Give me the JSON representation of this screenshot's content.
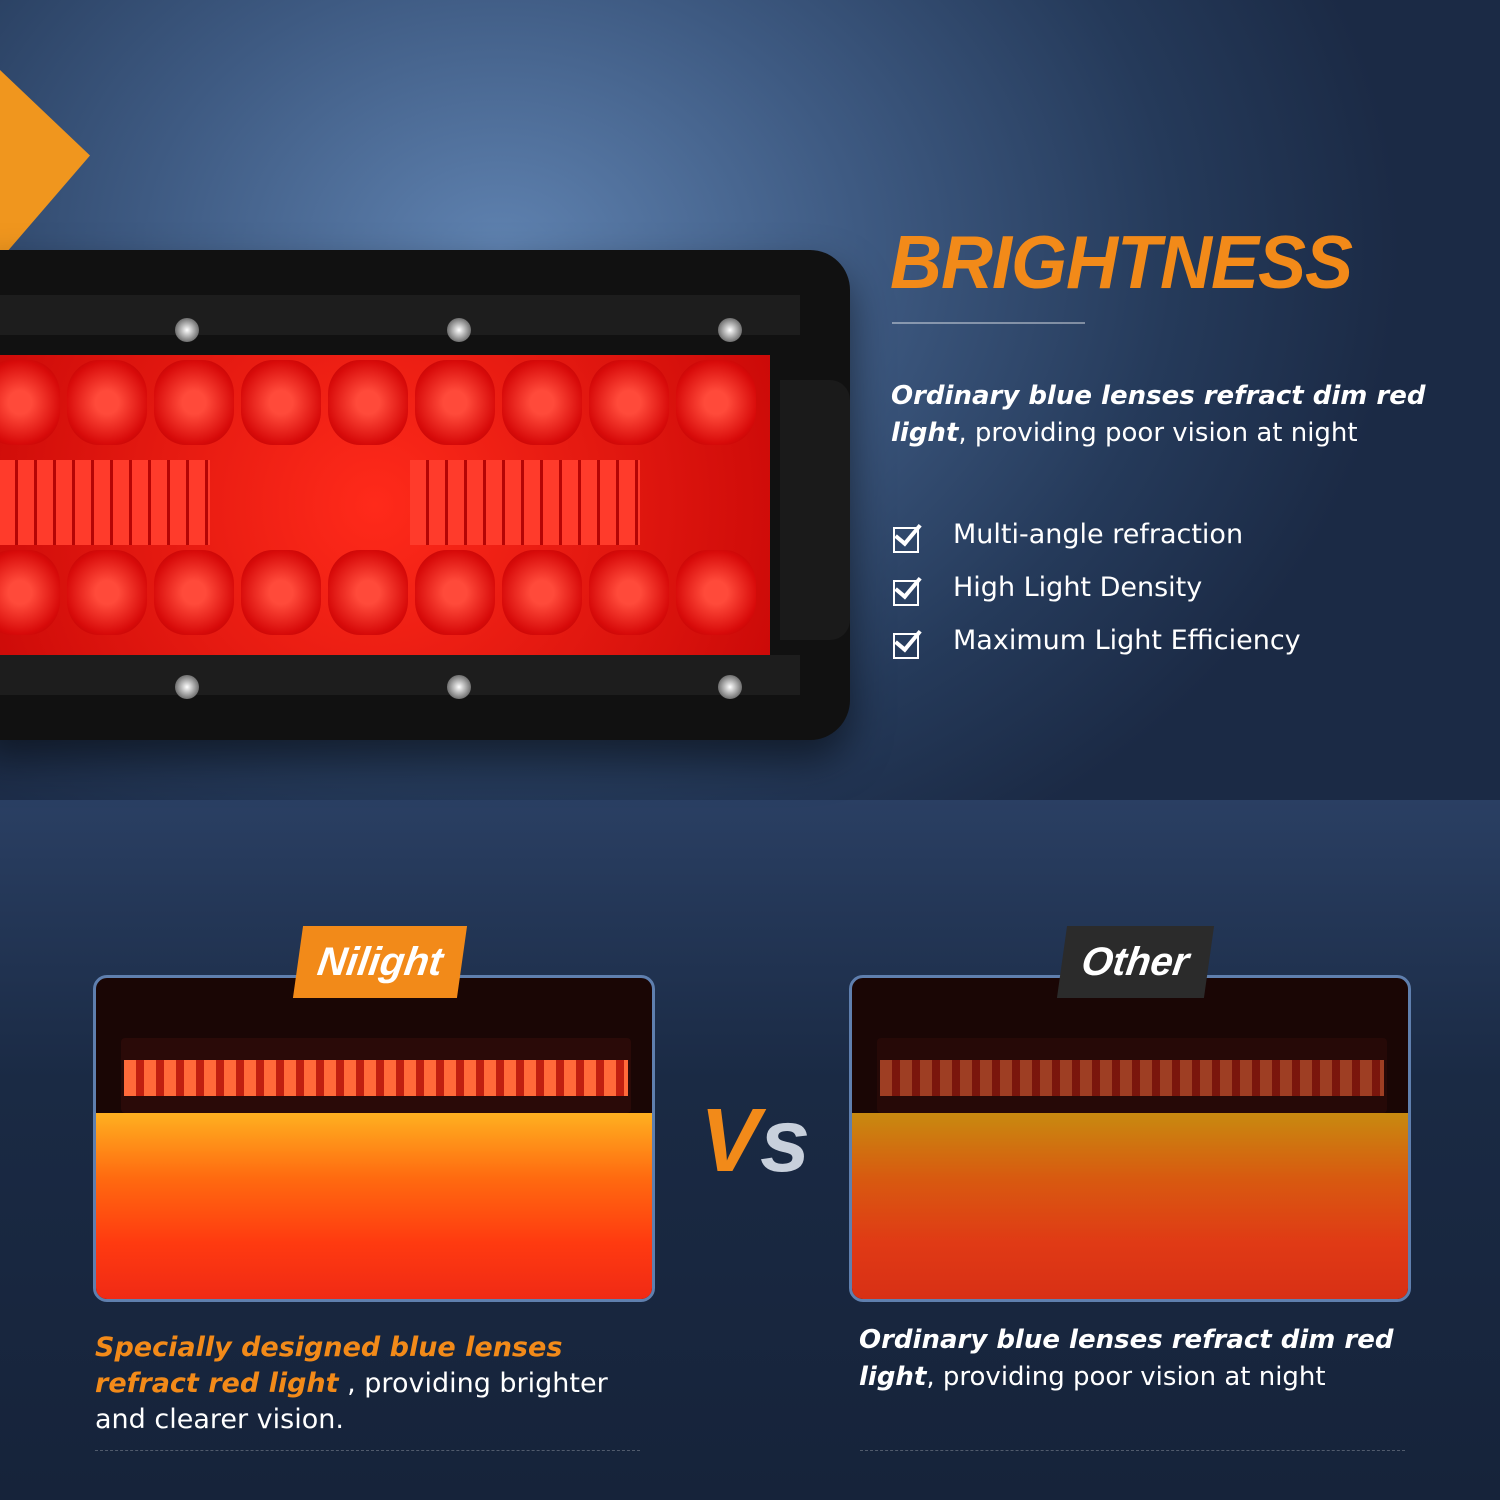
{
  "heading": {
    "title": "BRIGHTNESS"
  },
  "intro": {
    "bold": "Ordinary blue lenses refract dim red light",
    "rest": ", providing poor vision at night"
  },
  "features": [
    "Multi-angle refraction",
    "High Light Density",
    "Maximum Light Efficiency"
  ],
  "comparison": {
    "left": {
      "badge": "Nilight",
      "caption_highlight": "Specially designed blue lenses refract red light",
      "caption_rest": " , providing brighter and clearer vision."
    },
    "vs_label": "Vs",
    "right": {
      "badge": "Other",
      "caption_bold": "Ordinary blue lenses refract dim red light",
      "caption_rest": ", providing poor vision at night"
    }
  },
  "colors": {
    "accent": "#f28a19",
    "background": "#2a3f63",
    "badge_dark": "#2b2b2b"
  }
}
